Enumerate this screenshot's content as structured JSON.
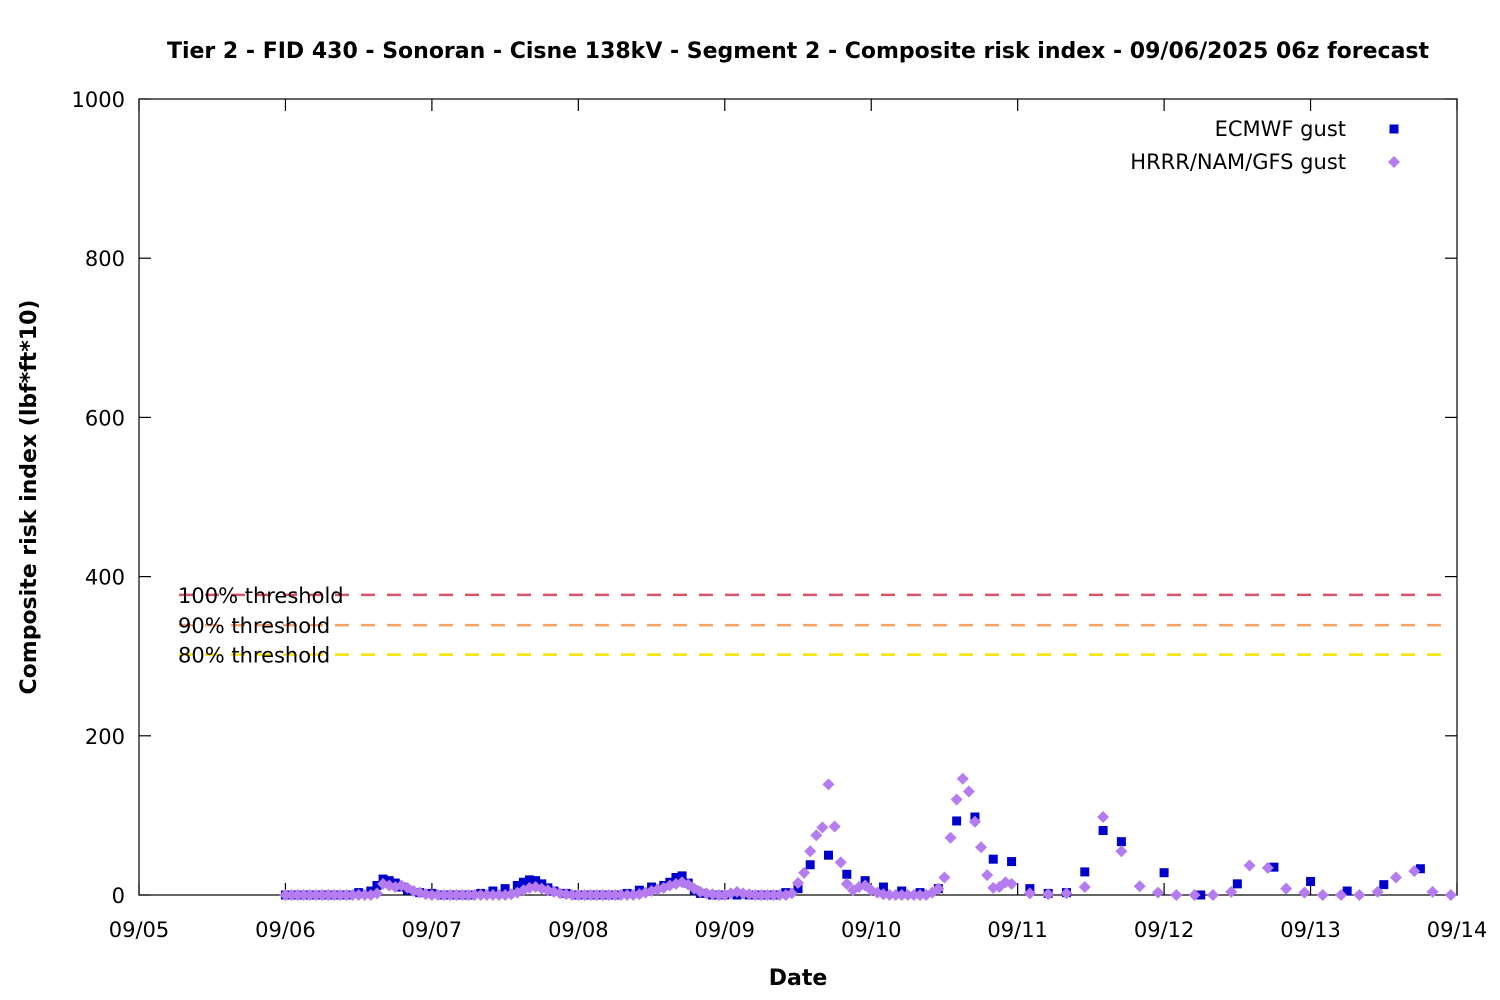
{
  "chart_data": {
    "type": "scatter",
    "title": "Tier 2 - FID 430 - Sonoran - Cisne 138kV - Segment 2 - Composite risk index - 09/06/2025 06z forecast",
    "xlabel": "Date",
    "ylabel": "Composite risk index (lbf*ft*10)",
    "x_tick_labels": [
      "09/05",
      "09/06",
      "09/07",
      "09/08",
      "09/09",
      "09/10",
      "09/11",
      "09/12",
      "09/13",
      "09/14"
    ],
    "xlim": [
      "2025-09-05 00:00",
      "2025-09-14 00:00"
    ],
    "ylim": [
      0,
      1000
    ],
    "y_ticks": [
      0,
      200,
      400,
      600,
      800,
      1000
    ],
    "grid": false,
    "legend_position": "top-right",
    "thresholds": [
      {
        "label": "100% threshold",
        "value": 377,
        "color": "#d9546a"
      },
      {
        "label": "90% threshold",
        "value": 339,
        "color": "#f4a261"
      },
      {
        "label": "80% threshold",
        "value": 302,
        "color": "#f2e600"
      }
    ],
    "series": [
      {
        "name": "ECMWF gust",
        "marker": "square",
        "color": "#0000cc",
        "points": [
          [
            "2025-09-06 00:00",
            0
          ],
          [
            "2025-09-06 02:00",
            0
          ],
          [
            "2025-09-06 04:00",
            0
          ],
          [
            "2025-09-06 06:00",
            0
          ],
          [
            "2025-09-06 08:00",
            0
          ],
          [
            "2025-09-06 10:00",
            0
          ],
          [
            "2025-09-06 12:00",
            3
          ],
          [
            "2025-09-06 14:00",
            5
          ],
          [
            "2025-09-06 15:00",
            12
          ],
          [
            "2025-09-06 16:00",
            20
          ],
          [
            "2025-09-06 17:00",
            18
          ],
          [
            "2025-09-06 18:00",
            15
          ],
          [
            "2025-09-06 19:00",
            10
          ],
          [
            "2025-09-06 20:00",
            6
          ],
          [
            "2025-09-06 22:00",
            3
          ],
          [
            "2025-09-07 00:00",
            2
          ],
          [
            "2025-09-07 02:00",
            0
          ],
          [
            "2025-09-07 04:00",
            0
          ],
          [
            "2025-09-07 06:00",
            0
          ],
          [
            "2025-09-07 08:00",
            2
          ],
          [
            "2025-09-07 10:00",
            5
          ],
          [
            "2025-09-07 12:00",
            8
          ],
          [
            "2025-09-07 14:00",
            12
          ],
          [
            "2025-09-07 15:00",
            16
          ],
          [
            "2025-09-07 16:00",
            19
          ],
          [
            "2025-09-07 17:00",
            18
          ],
          [
            "2025-09-07 18:00",
            14
          ],
          [
            "2025-09-07 19:00",
            9
          ],
          [
            "2025-09-07 20:00",
            5
          ],
          [
            "2025-09-07 22:00",
            2
          ],
          [
            "2025-09-08 00:00",
            0
          ],
          [
            "2025-09-08 02:00",
            0
          ],
          [
            "2025-09-08 04:00",
            0
          ],
          [
            "2025-09-08 06:00",
            0
          ],
          [
            "2025-09-08 08:00",
            2
          ],
          [
            "2025-09-08 10:00",
            6
          ],
          [
            "2025-09-08 12:00",
            10
          ],
          [
            "2025-09-08 14:00",
            12
          ],
          [
            "2025-09-08 15:00",
            16
          ],
          [
            "2025-09-08 16:00",
            22
          ],
          [
            "2025-09-08 17:00",
            24
          ],
          [
            "2025-09-08 18:00",
            15
          ],
          [
            "2025-09-08 19:00",
            6
          ],
          [
            "2025-09-08 20:00",
            2
          ],
          [
            "2025-09-08 22:00",
            0
          ],
          [
            "2025-09-09 00:00",
            0
          ],
          [
            "2025-09-09 02:00",
            0
          ],
          [
            "2025-09-09 04:00",
            0
          ],
          [
            "2025-09-09 06:00",
            0
          ],
          [
            "2025-09-09 08:00",
            0
          ],
          [
            "2025-09-09 10:00",
            3
          ],
          [
            "2025-09-09 12:00",
            8
          ],
          [
            "2025-09-09 14:00",
            38
          ],
          [
            "2025-09-09 17:00",
            50
          ],
          [
            "2025-09-09 20:00",
            26
          ],
          [
            "2025-09-09 23:00",
            18
          ],
          [
            "2025-09-10 02:00",
            10
          ],
          [
            "2025-09-10 05:00",
            5
          ],
          [
            "2025-09-10 08:00",
            3
          ],
          [
            "2025-09-10 11:00",
            8
          ],
          [
            "2025-09-10 14:00",
            93
          ],
          [
            "2025-09-10 17:00",
            98
          ],
          [
            "2025-09-10 20:00",
            45
          ],
          [
            "2025-09-10 23:00",
            42
          ],
          [
            "2025-09-11 02:00",
            8
          ],
          [
            "2025-09-11 05:00",
            2
          ],
          [
            "2025-09-11 08:00",
            3
          ],
          [
            "2025-09-11 11:00",
            29
          ],
          [
            "2025-09-11 14:00",
            81
          ],
          [
            "2025-09-11 17:00",
            67
          ],
          [
            "2025-09-12 00:00",
            28
          ],
          [
            "2025-09-12 06:00",
            0
          ],
          [
            "2025-09-12 12:00",
            14
          ],
          [
            "2025-09-12 18:00",
            35
          ],
          [
            "2025-09-13 00:00",
            17
          ],
          [
            "2025-09-13 06:00",
            5
          ],
          [
            "2025-09-13 12:00",
            13
          ],
          [
            "2025-09-13 18:00",
            33
          ]
        ]
      },
      {
        "name": "HRRR/NAM/GFS gust",
        "marker": "diamond",
        "color": "#b57bf0",
        "points": [
          [
            "2025-09-06 00:00",
            0
          ],
          [
            "2025-09-06 01:00",
            0
          ],
          [
            "2025-09-06 02:00",
            0
          ],
          [
            "2025-09-06 03:00",
            0
          ],
          [
            "2025-09-06 04:00",
            0
          ],
          [
            "2025-09-06 05:00",
            0
          ],
          [
            "2025-09-06 06:00",
            0
          ],
          [
            "2025-09-06 07:00",
            0
          ],
          [
            "2025-09-06 08:00",
            0
          ],
          [
            "2025-09-06 09:00",
            0
          ],
          [
            "2025-09-06 10:00",
            0
          ],
          [
            "2025-09-06 11:00",
            0
          ],
          [
            "2025-09-06 12:00",
            0
          ],
          [
            "2025-09-06 13:00",
            0
          ],
          [
            "2025-09-06 14:00",
            0
          ],
          [
            "2025-09-06 15:00",
            2
          ],
          [
            "2025-09-06 16:00",
            14
          ],
          [
            "2025-09-06 17:00",
            12
          ],
          [
            "2025-09-06 18:00",
            10
          ],
          [
            "2025-09-06 19:00",
            12
          ],
          [
            "2025-09-06 20:00",
            9
          ],
          [
            "2025-09-06 21:00",
            5
          ],
          [
            "2025-09-06 22:00",
            3
          ],
          [
            "2025-09-06 23:00",
            1
          ],
          [
            "2025-09-07 00:00",
            0
          ],
          [
            "2025-09-07 01:00",
            0
          ],
          [
            "2025-09-07 02:00",
            0
          ],
          [
            "2025-09-07 03:00",
            0
          ],
          [
            "2025-09-07 04:00",
            0
          ],
          [
            "2025-09-07 05:00",
            0
          ],
          [
            "2025-09-07 06:00",
            0
          ],
          [
            "2025-09-07 07:00",
            0
          ],
          [
            "2025-09-07 08:00",
            0
          ],
          [
            "2025-09-07 09:00",
            0
          ],
          [
            "2025-09-07 10:00",
            0
          ],
          [
            "2025-09-07 11:00",
            0
          ],
          [
            "2025-09-07 12:00",
            0
          ],
          [
            "2025-09-07 13:00",
            1
          ],
          [
            "2025-09-07 14:00",
            3
          ],
          [
            "2025-09-07 15:00",
            6
          ],
          [
            "2025-09-07 16:00",
            9
          ],
          [
            "2025-09-07 17:00",
            10
          ],
          [
            "2025-09-07 18:00",
            8
          ],
          [
            "2025-09-07 19:00",
            6
          ],
          [
            "2025-09-07 20:00",
            4
          ],
          [
            "2025-09-07 21:00",
            2
          ],
          [
            "2025-09-07 22:00",
            1
          ],
          [
            "2025-09-07 23:00",
            0
          ],
          [
            "2025-09-08 00:00",
            0
          ],
          [
            "2025-09-08 01:00",
            0
          ],
          [
            "2025-09-08 02:00",
            0
          ],
          [
            "2025-09-08 03:00",
            0
          ],
          [
            "2025-09-08 04:00",
            0
          ],
          [
            "2025-09-08 05:00",
            0
          ],
          [
            "2025-09-08 06:00",
            0
          ],
          [
            "2025-09-08 07:00",
            0
          ],
          [
            "2025-09-08 08:00",
            0
          ],
          [
            "2025-09-08 09:00",
            0
          ],
          [
            "2025-09-08 10:00",
            1
          ],
          [
            "2025-09-08 11:00",
            3
          ],
          [
            "2025-09-08 12:00",
            5
          ],
          [
            "2025-09-08 13:00",
            7
          ],
          [
            "2025-09-08 14:00",
            9
          ],
          [
            "2025-09-08 15:00",
            12
          ],
          [
            "2025-09-08 16:00",
            14
          ],
          [
            "2025-09-08 17:00",
            16
          ],
          [
            "2025-09-08 18:00",
            13
          ],
          [
            "2025-09-08 19:00",
            8
          ],
          [
            "2025-09-08 20:00",
            4
          ],
          [
            "2025-09-08 21:00",
            2
          ],
          [
            "2025-09-08 22:00",
            1
          ],
          [
            "2025-09-08 23:00",
            0
          ],
          [
            "2025-09-09 00:00",
            0
          ],
          [
            "2025-09-09 01:00",
            2
          ],
          [
            "2025-09-09 02:00",
            4
          ],
          [
            "2025-09-09 03:00",
            2
          ],
          [
            "2025-09-09 04:00",
            1
          ],
          [
            "2025-09-09 05:00",
            0
          ],
          [
            "2025-09-09 06:00",
            0
          ],
          [
            "2025-09-09 07:00",
            0
          ],
          [
            "2025-09-09 08:00",
            0
          ],
          [
            "2025-09-09 09:00",
            0
          ],
          [
            "2025-09-09 10:00",
            0
          ],
          [
            "2025-09-09 11:00",
            2
          ],
          [
            "2025-09-09 12:00",
            15
          ],
          [
            "2025-09-09 13:00",
            28
          ],
          [
            "2025-09-09 14:00",
            55
          ],
          [
            "2025-09-09 15:00",
            75
          ],
          [
            "2025-09-09 16:00",
            85
          ],
          [
            "2025-09-09 17:00",
            139
          ],
          [
            "2025-09-09 18:00",
            86
          ],
          [
            "2025-09-09 19:00",
            41
          ],
          [
            "2025-09-09 20:00",
            14
          ],
          [
            "2025-09-09 21:00",
            6
          ],
          [
            "2025-09-09 22:00",
            10
          ],
          [
            "2025-09-09 23:00",
            12
          ],
          [
            "2025-09-10 00:00",
            6
          ],
          [
            "2025-09-10 01:00",
            3
          ],
          [
            "2025-09-10 02:00",
            1
          ],
          [
            "2025-09-10 03:00",
            0
          ],
          [
            "2025-09-10 04:00",
            0
          ],
          [
            "2025-09-10 05:00",
            0
          ],
          [
            "2025-09-10 06:00",
            0
          ],
          [
            "2025-09-10 07:00",
            0
          ],
          [
            "2025-09-10 08:00",
            0
          ],
          [
            "2025-09-10 09:00",
            0
          ],
          [
            "2025-09-10 10:00",
            3
          ],
          [
            "2025-09-10 11:00",
            8
          ],
          [
            "2025-09-10 12:00",
            22
          ],
          [
            "2025-09-10 13:00",
            72
          ],
          [
            "2025-09-10 14:00",
            120
          ],
          [
            "2025-09-10 15:00",
            146
          ],
          [
            "2025-09-10 16:00",
            130
          ],
          [
            "2025-09-10 17:00",
            92
          ],
          [
            "2025-09-10 18:00",
            60
          ],
          [
            "2025-09-10 19:00",
            25
          ],
          [
            "2025-09-10 20:00",
            9
          ],
          [
            "2025-09-10 21:00",
            10
          ],
          [
            "2025-09-10 22:00",
            16
          ],
          [
            "2025-09-10 23:00",
            14
          ],
          [
            "2025-09-11 02:00",
            2
          ],
          [
            "2025-09-11 05:00",
            1
          ],
          [
            "2025-09-11 08:00",
            2
          ],
          [
            "2025-09-11 11:00",
            10
          ],
          [
            "2025-09-11 14:00",
            98
          ],
          [
            "2025-09-11 17:00",
            55
          ],
          [
            "2025-09-11 20:00",
            11
          ],
          [
            "2025-09-11 23:00",
            3
          ],
          [
            "2025-09-12 02:00",
            0
          ],
          [
            "2025-09-12 05:00",
            0
          ],
          [
            "2025-09-12 08:00",
            0
          ],
          [
            "2025-09-12 11:00",
            4
          ],
          [
            "2025-09-12 14:00",
            37
          ],
          [
            "2025-09-12 17:00",
            34
          ],
          [
            "2025-09-12 20:00",
            8
          ],
          [
            "2025-09-12 23:00",
            3
          ],
          [
            "2025-09-13 02:00",
            0
          ],
          [
            "2025-09-13 05:00",
            0
          ],
          [
            "2025-09-13 08:00",
            0
          ],
          [
            "2025-09-13 11:00",
            4
          ],
          [
            "2025-09-13 14:00",
            22
          ],
          [
            "2025-09-13 17:00",
            30
          ],
          [
            "2025-09-13 20:00",
            4
          ],
          [
            "2025-09-13 23:00",
            0
          ]
        ]
      }
    ]
  }
}
